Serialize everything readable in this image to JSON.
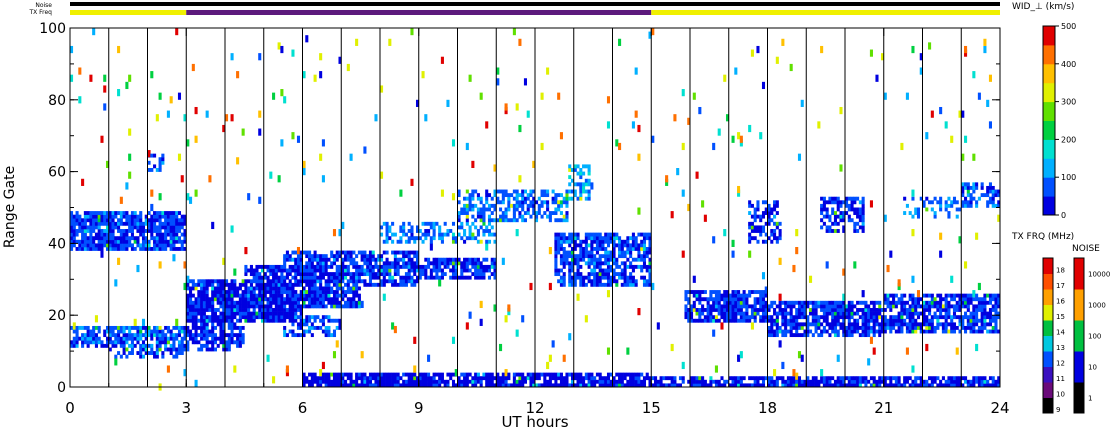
{
  "chart_data": {
    "type": "heatmap",
    "title": "",
    "xlabel": "UT hours",
    "ylabel": "Range Gate",
    "x_ticks": [
      "0",
      "3",
      "6",
      "9",
      "12",
      "15",
      "18",
      "21",
      "24"
    ],
    "y_ticks": [
      "0",
      "20",
      "40",
      "60",
      "80",
      "100"
    ],
    "xlim": [
      0,
      24
    ],
    "ylim": [
      0,
      100
    ],
    "grid_vertical_every_hours": 1,
    "header": {
      "noise_label": "Noise",
      "txfreq_label": "TX Freq",
      "tx_freq_segments": [
        {
          "start": 0,
          "end": 3,
          "color": "#f0f000"
        },
        {
          "start": 3,
          "end": 15,
          "color": "#5c1a7c"
        },
        {
          "start": 15,
          "end": 24,
          "color": "#f0f000"
        }
      ]
    },
    "colorbar_width": {
      "label": "WID_⊥ (km/s)",
      "ticks": [
        "0",
        "100",
        "200",
        "300",
        "400",
        "500"
      ],
      "range": [
        0,
        500
      ],
      "colors": [
        "#0000e0",
        "#0050ff",
        "#00b0ff",
        "#00e0d0",
        "#00d040",
        "#60e000",
        "#e0f000",
        "#ffc000",
        "#ff7000",
        "#e00000"
      ]
    },
    "colorbar_txfreq": {
      "label": "TX FRQ (MHz)",
      "ticks": [
        "9",
        "10",
        "11",
        "12",
        "13",
        "14",
        "15",
        "16",
        "17",
        "18"
      ],
      "colors": [
        "#000000",
        "#6a0a7a",
        "#3a10c0",
        "#0050ff",
        "#00c8e0",
        "#00c040",
        "#e0f000",
        "#ffa000",
        "#ff5000",
        "#e00000"
      ]
    },
    "colorbar_noise": {
      "label": "NOISE",
      "ticks": [
        "1",
        "10",
        "100",
        "1000",
        "10000"
      ],
      "colors": [
        "#000000",
        "#0000e0",
        "#00c040",
        "#ffa000",
        "#e00000"
      ]
    },
    "regions": [
      {
        "x0": 0.0,
        "x1": 3.0,
        "y0": 38,
        "y1": 49,
        "weight": 0.85,
        "value": 60
      },
      {
        "x0": 0.0,
        "x1": 3.0,
        "y0": 11,
        "y1": 17,
        "weight": 0.75,
        "value": 70
      },
      {
        "x0": 1.0,
        "x1": 3.0,
        "y0": 8,
        "y1": 12,
        "weight": 0.55,
        "value": 60
      },
      {
        "x0": 2.0,
        "x1": 2.4,
        "y0": 60,
        "y1": 65,
        "weight": 0.6,
        "value": 70
      },
      {
        "x0": 3.0,
        "x1": 6.0,
        "y0": 18,
        "y1": 30,
        "weight": 0.9,
        "value": 30
      },
      {
        "x0": 3.0,
        "x1": 4.5,
        "y0": 10,
        "y1": 18,
        "weight": 0.7,
        "value": 40
      },
      {
        "x0": 4.5,
        "x1": 7.5,
        "y0": 22,
        "y1": 34,
        "weight": 0.85,
        "value": 40
      },
      {
        "x0": 5.5,
        "x1": 9.0,
        "y0": 28,
        "y1": 38,
        "weight": 0.75,
        "value": 60
      },
      {
        "x0": 5.5,
        "x1": 7.0,
        "y0": 14,
        "y1": 20,
        "weight": 0.6,
        "value": 70
      },
      {
        "x0": 8.5,
        "x1": 11.0,
        "y0": 30,
        "y1": 36,
        "weight": 0.8,
        "value": 50
      },
      {
        "x0": 8.0,
        "x1": 11.0,
        "y0": 40,
        "y1": 46,
        "weight": 0.45,
        "value": 90
      },
      {
        "x0": 10.0,
        "x1": 12.8,
        "y0": 46,
        "y1": 55,
        "weight": 0.55,
        "value": 80
      },
      {
        "x0": 12.5,
        "x1": 15.0,
        "y0": 28,
        "y1": 43,
        "weight": 0.7,
        "value": 60
      },
      {
        "x0": 12.8,
        "x1": 13.4,
        "y0": 52,
        "y1": 62,
        "weight": 0.6,
        "value": 120
      },
      {
        "x0": 6.0,
        "x1": 15.0,
        "y0": 0,
        "y1": 4,
        "weight": 0.85,
        "value": 20
      },
      {
        "x0": 15.0,
        "x1": 24.0,
        "y0": 0,
        "y1": 3,
        "weight": 0.8,
        "value": 30
      },
      {
        "x0": 15.8,
        "x1": 18.0,
        "y0": 18,
        "y1": 27,
        "weight": 0.8,
        "value": 50
      },
      {
        "x0": 18.0,
        "x1": 21.0,
        "y0": 14,
        "y1": 24,
        "weight": 0.8,
        "value": 40
      },
      {
        "x0": 21.0,
        "x1": 24.0,
        "y0": 15,
        "y1": 26,
        "weight": 0.75,
        "value": 50
      },
      {
        "x0": 17.5,
        "x1": 18.3,
        "y0": 40,
        "y1": 52,
        "weight": 0.5,
        "value": 40
      },
      {
        "x0": 19.3,
        "x1": 20.5,
        "y0": 43,
        "y1": 53,
        "weight": 0.6,
        "value": 50
      },
      {
        "x0": 23.0,
        "x1": 24.0,
        "y0": 50,
        "y1": 57,
        "weight": 0.5,
        "value": 70
      },
      {
        "x0": 21.5,
        "x1": 23.0,
        "y0": 47,
        "y1": 53,
        "weight": 0.35,
        "value": 90
      }
    ],
    "scatter_density": 0.012
  }
}
